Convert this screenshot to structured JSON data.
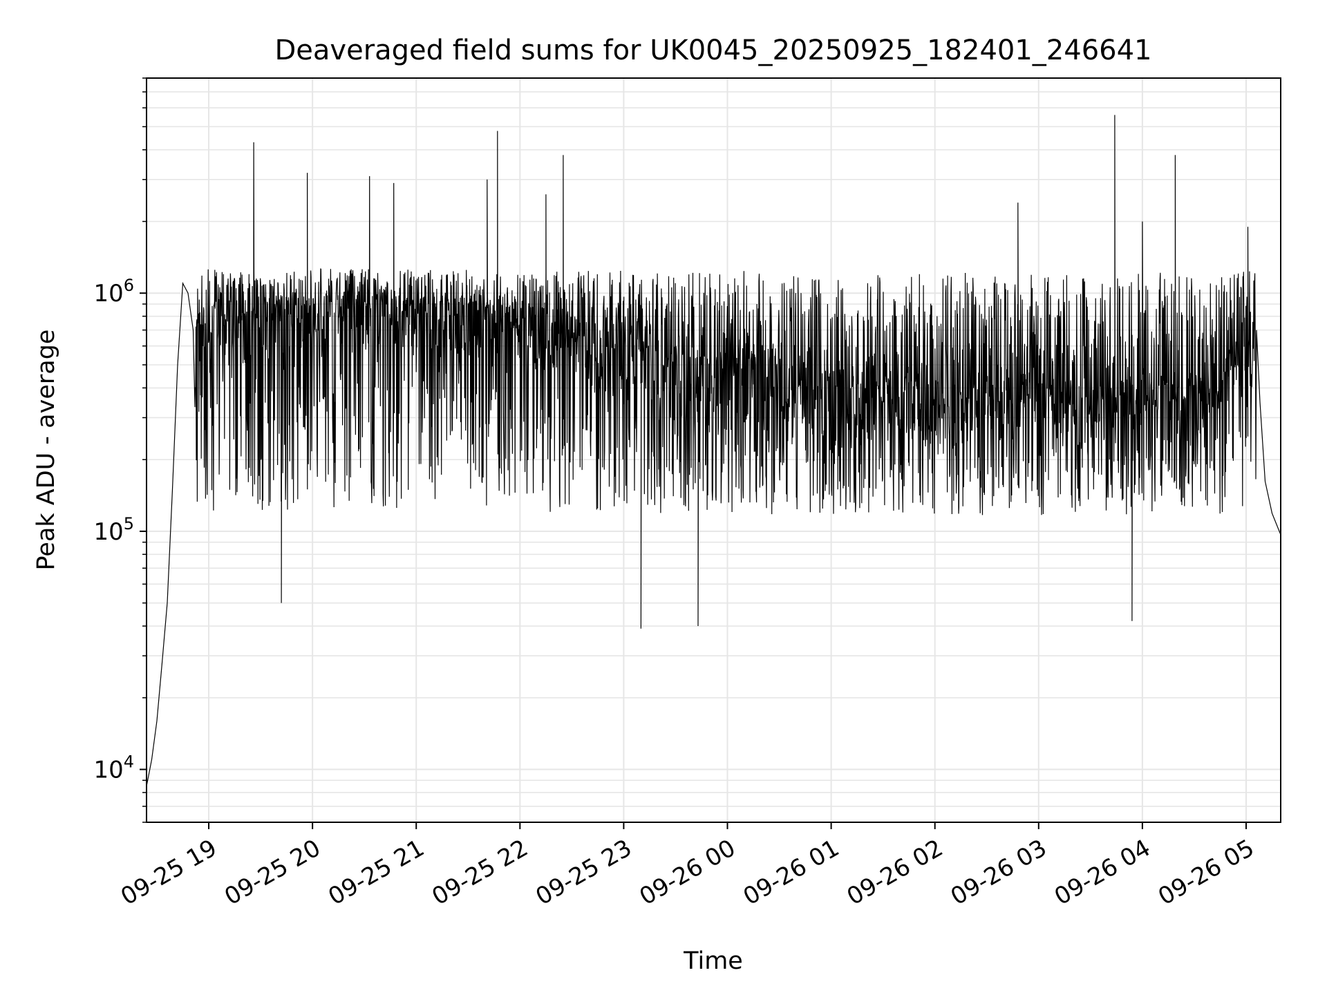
{
  "chart_data": {
    "type": "line",
    "title": "Deaveraged field sums for UK0045_20250925_182401_246641",
    "xlabel": "Time",
    "ylabel": "Peak ADU - average",
    "yscale": "log",
    "ylim": [
      6000,
      8000000
    ],
    "xlim": [
      "2025-09-25 18:24",
      "2025-09-26 05:20"
    ],
    "grid": true,
    "line_color": "#000000",
    "grid_color": "#e6e6e6",
    "x_ticks": [
      {
        "t": "2025-09-25 19:00",
        "label": "09-25 19"
      },
      {
        "t": "2025-09-25 20:00",
        "label": "09-25 20"
      },
      {
        "t": "2025-09-25 21:00",
        "label": "09-25 21"
      },
      {
        "t": "2025-09-25 22:00",
        "label": "09-25 22"
      },
      {
        "t": "2025-09-25 23:00",
        "label": "09-25 23"
      },
      {
        "t": "2025-09-26 00:00",
        "label": "09-26 00"
      },
      {
        "t": "2025-09-26 01:00",
        "label": "09-26 01"
      },
      {
        "t": "2025-09-26 02:00",
        "label": "09-26 02"
      },
      {
        "t": "2025-09-26 03:00",
        "label": "09-26 03"
      },
      {
        "t": "2025-09-26 04:00",
        "label": "09-26 04"
      },
      {
        "t": "2025-09-26 05:00",
        "label": "09-26 05"
      }
    ],
    "y_ticks": [
      {
        "value": 10000,
        "base": "10",
        "exp": "4"
      },
      {
        "value": 100000,
        "base": "10",
        "exp": "5"
      },
      {
        "value": 1000000,
        "base": "10",
        "exp": "6"
      }
    ],
    "series": [
      {
        "trend": [
          {
            "t": "2025-09-25 18:24",
            "value": 8500
          },
          {
            "t": "2025-09-25 18:27",
            "value": 11000
          },
          {
            "t": "2025-09-25 18:30",
            "value": 16000
          },
          {
            "t": "2025-09-25 18:33",
            "value": 28000
          },
          {
            "t": "2025-09-25 18:36",
            "value": 50000
          },
          {
            "t": "2025-09-25 18:39",
            "value": 150000
          },
          {
            "t": "2025-09-25 18:42",
            "value": 500000
          },
          {
            "t": "2025-09-25 18:45",
            "value": 1100000
          },
          {
            "t": "2025-09-25 18:48",
            "value": 1000000
          },
          {
            "t": "2025-09-25 18:51",
            "value": 700000
          },
          {
            "t": "2025-09-25 19:00",
            "value": 700000
          },
          {
            "t": "2025-09-25 19:30",
            "value": 750000
          },
          {
            "t": "2025-09-25 20:00",
            "value": 780000
          },
          {
            "t": "2025-09-25 20:30",
            "value": 800000
          },
          {
            "t": "2025-09-25 21:00",
            "value": 780000
          },
          {
            "t": "2025-09-25 21:30",
            "value": 750000
          },
          {
            "t": "2025-09-25 22:00",
            "value": 700000
          },
          {
            "t": "2025-09-25 22:30",
            "value": 620000
          },
          {
            "t": "2025-09-25 23:00",
            "value": 560000
          },
          {
            "t": "2025-09-25 23:30",
            "value": 470000
          },
          {
            "t": "2025-09-25 23:55",
            "value": 430000
          },
          {
            "t": "2025-09-26 00:00",
            "value": 550000
          },
          {
            "t": "2025-09-26 00:30",
            "value": 400000
          },
          {
            "t": "2025-09-26 01:00",
            "value": 380000
          },
          {
            "t": "2025-09-26 01:30",
            "value": 370000
          },
          {
            "t": "2025-09-26 02:00",
            "value": 340000
          },
          {
            "t": "2025-09-26 02:30",
            "value": 340000
          },
          {
            "t": "2025-09-26 03:00",
            "value": 360000
          },
          {
            "t": "2025-09-26 03:30",
            "value": 330000
          },
          {
            "t": "2025-09-26 04:00",
            "value": 360000
          },
          {
            "t": "2025-09-26 04:30",
            "value": 380000
          },
          {
            "t": "2025-09-26 05:05",
            "value": 520000
          },
          {
            "t": "2025-09-26 05:08",
            "value": 350000
          },
          {
            "t": "2025-09-26 05:11",
            "value": 150000
          },
          {
            "t": "2025-09-26 05:15",
            "value": 110000
          },
          {
            "t": "2025-09-26 05:20",
            "value": 100000
          }
        ],
        "band_high": 1300000,
        "band_low": 110000,
        "spikes": [
          {
            "t": "2025-09-25 19:26",
            "value": 4300000
          },
          {
            "t": "2025-09-25 19:57",
            "value": 3200000
          },
          {
            "t": "2025-09-25 20:33",
            "value": 3100000
          },
          {
            "t": "2025-09-25 20:47",
            "value": 2900000
          },
          {
            "t": "2025-09-25 21:47",
            "value": 4800000
          },
          {
            "t": "2025-09-25 21:41",
            "value": 3000000
          },
          {
            "t": "2025-09-25 22:25",
            "value": 3800000
          },
          {
            "t": "2025-09-25 22:15",
            "value": 2600000
          },
          {
            "t": "2025-09-26 02:48",
            "value": 2400000
          },
          {
            "t": "2025-09-26 03:44",
            "value": 5600000
          },
          {
            "t": "2025-09-26 04:19",
            "value": 3800000
          },
          {
            "t": "2025-09-26 04:00",
            "value": 2000000
          },
          {
            "t": "2025-09-26 05:01",
            "value": 1900000
          }
        ],
        "dips": [
          {
            "t": "2025-09-25 23:10",
            "value": 39000
          },
          {
            "t": "2025-09-25 23:43",
            "value": 40000
          },
          {
            "t": "2025-09-25 19:42",
            "value": 50000
          },
          {
            "t": "2025-09-26 03:54",
            "value": 42000
          }
        ]
      }
    ]
  }
}
